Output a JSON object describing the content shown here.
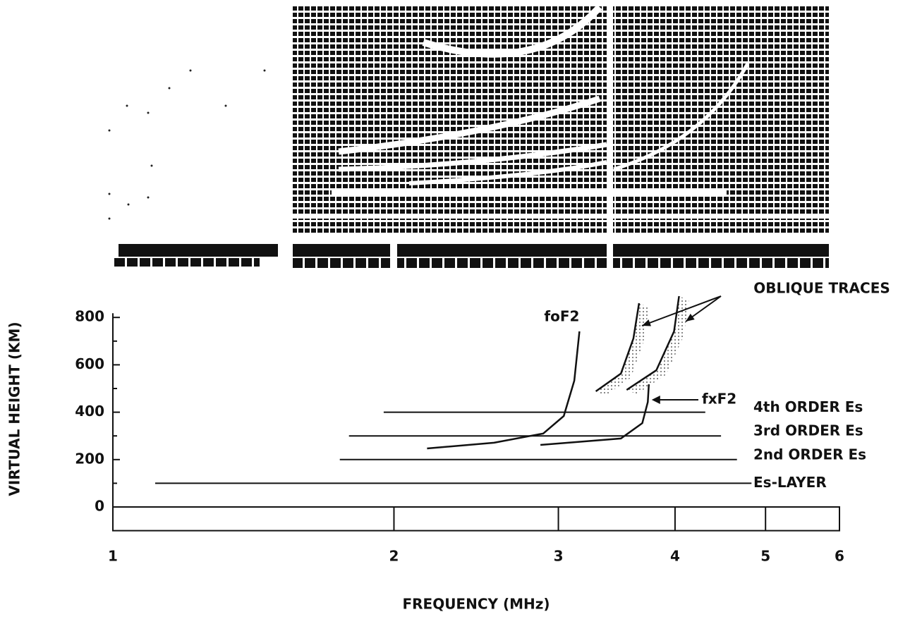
{
  "chart_data": {
    "type": "line",
    "x_label": "FREQUENCY (MHz)",
    "y_label": "VIRTUAL HEIGHT (KM)",
    "xscale": "log",
    "xlim": [
      1,
      6
    ],
    "xticks": [
      1,
      2,
      3,
      4,
      5,
      6
    ],
    "ylim": [
      -100,
      900
    ],
    "yticks": [
      0,
      200,
      400,
      600,
      800
    ],
    "yminorticks": [
      100,
      300,
      500,
      700
    ],
    "color": "#111111",
    "series": [
      {
        "name": "Es-LAYER",
        "x": [
          1.11,
          4.83
        ],
        "values": [
          100,
          100
        ]
      },
      {
        "name": "2nd ORDER Es",
        "x": [
          1.75,
          4.66
        ],
        "values": [
          200,
          200
        ]
      },
      {
        "name": "3rd ORDER Es",
        "x": [
          1.79,
          4.48
        ],
        "values": [
          300,
          300
        ]
      },
      {
        "name": "4th ORDER Es",
        "x": [
          1.95,
          4.31
        ],
        "values": [
          400,
          400
        ]
      },
      {
        "name": "foF2",
        "x": [
          2.17,
          2.56,
          2.89,
          3.04,
          3.12,
          3.16
        ],
        "values": [
          247,
          271,
          310,
          384,
          533,
          741
        ]
      },
      {
        "name": "fxF2",
        "x": [
          2.87,
          3.5,
          3.69,
          3.74,
          3.75
        ],
        "values": [
          262,
          289,
          354,
          443,
          518
        ]
      },
      {
        "x": [
          3.29,
          3.5,
          3.61,
          3.66
        ],
        "values": [
          488,
          563,
          711,
          860
        ]
      },
      {
        "x": [
          3.55,
          3.82,
          3.99,
          4.04
        ],
        "values": [
          494,
          577,
          741,
          890
        ]
      }
    ],
    "annotations": [
      {
        "text": "OBLIQUE TRACES"
      }
    ]
  }
}
